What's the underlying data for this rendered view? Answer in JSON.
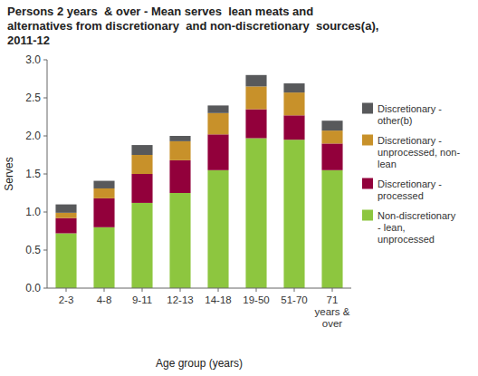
{
  "chart_data": {
    "type": "bar",
    "stacked": true,
    "title": "Persons 2 years  & over - Mean serves  lean meats and\nalternatives from discretionary  and non-discretionary  sources(a),\n2011-12",
    "xlabel": "Age group (years)",
    "ylabel": "Serves",
    "categories": [
      "2-3",
      "4-8",
      "9-11",
      "12-13",
      "14-18",
      "19-50",
      "51-70",
      "71\nyears &\nover"
    ],
    "series": [
      {
        "name": "Non-discretionary\n- lean,\nunprocessed",
        "color": "#8dc63f",
        "values": [
          0.72,
          0.8,
          1.12,
          1.25,
          1.55,
          1.97,
          1.95,
          1.55
        ]
      },
      {
        "name": "Discretionary -\nprocessed",
        "color": "#92003b",
        "values": [
          0.2,
          0.38,
          0.38,
          0.43,
          0.47,
          0.38,
          0.32,
          0.35
        ]
      },
      {
        "name": "Discretionary -\nunprocessed, non-\nlean",
        "color": "#c8912a",
        "values": [
          0.07,
          0.13,
          0.25,
          0.25,
          0.28,
          0.3,
          0.3,
          0.17
        ]
      },
      {
        "name": "Discretionary -\nother(b)",
        "color": "#58595b",
        "values": [
          0.11,
          0.1,
          0.13,
          0.07,
          0.1,
          0.15,
          0.12,
          0.13
        ]
      }
    ],
    "ylim": [
      0,
      3.0
    ],
    "yticks": [
      {
        "value": 0.0,
        "label": "0.0"
      },
      0.5,
      {
        "value": 1.0,
        "label": "1.0"
      },
      1.5,
      {
        "value": 2.0,
        "label": "2.0"
      },
      2.5,
      {
        "value": 3.0,
        "label": "3.0"
      }
    ],
    "grid": false,
    "legend": "right"
  }
}
